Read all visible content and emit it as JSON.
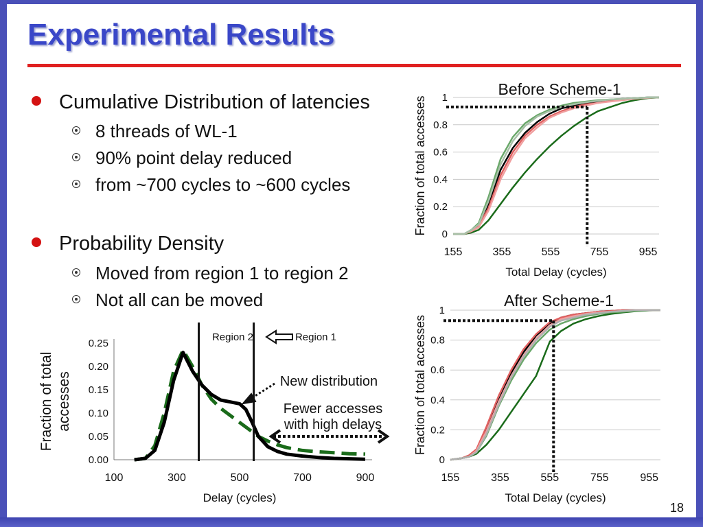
{
  "slide": {
    "title": "Experimental Results",
    "page_number": "18",
    "colors": {
      "title": "#3a47c8",
      "rule": "#e02020",
      "bullet": "#d41212",
      "frame": "#4a50b8"
    }
  },
  "bullets": [
    {
      "text": "Cumulative Distribution of latencies",
      "sub": [
        "8 threads of WL-1",
        "90% point delay reduced",
        "from ~700 cycles to ~600 cycles"
      ]
    },
    {
      "text": "Probability Density",
      "sub": [
        "Moved from region 1 to region 2",
        "Not all can be moved"
      ]
    }
  ],
  "chart_data": [
    {
      "id": "before",
      "type": "line",
      "title": "Before Scheme-1",
      "xlabel": "Total Delay (cycles)",
      "ylabel": "Fraction of total accesses",
      "xlim": [
        155,
        1000
      ],
      "ylim": [
        0,
        1
      ],
      "xticks": [
        "155",
        "355",
        "555",
        "755",
        "955"
      ],
      "yticks": [
        "0",
        "0.2",
        "0.4",
        "0.6",
        "0.8",
        "1"
      ],
      "grid": true,
      "series": [
        {
          "color": "#1a6b1a",
          "x": [
            155,
            200,
            230,
            260,
            300,
            350,
            400,
            450,
            500,
            550,
            600,
            650,
            700,
            750,
            800,
            850,
            900,
            955,
            1000
          ],
          "y": [
            0,
            0,
            0.01,
            0.03,
            0.1,
            0.22,
            0.34,
            0.45,
            0.55,
            0.64,
            0.72,
            0.79,
            0.85,
            0.9,
            0.93,
            0.96,
            0.98,
            0.995,
            1
          ]
        },
        {
          "color": "#000000",
          "x": [
            155,
            200,
            230,
            260,
            300,
            350,
            400,
            450,
            500,
            550,
            600,
            650,
            700,
            750,
            800,
            850,
            900,
            955,
            1000
          ],
          "y": [
            0,
            0,
            0.02,
            0.05,
            0.22,
            0.47,
            0.63,
            0.74,
            0.82,
            0.88,
            0.92,
            0.94,
            0.96,
            0.97,
            0.98,
            0.99,
            0.995,
            1,
            1
          ]
        },
        {
          "color": "#e06060",
          "x": [
            155,
            200,
            230,
            260,
            300,
            350,
            400,
            450,
            500,
            550,
            600,
            650,
            700,
            750,
            800,
            850,
            900,
            955,
            1000
          ],
          "y": [
            0,
            0,
            0.02,
            0.06,
            0.19,
            0.43,
            0.6,
            0.72,
            0.8,
            0.86,
            0.9,
            0.93,
            0.95,
            0.96,
            0.975,
            0.985,
            0.993,
            0.998,
            1
          ]
        },
        {
          "color": "#f0a0a0",
          "x": [
            155,
            200,
            230,
            260,
            300,
            350,
            400,
            450,
            500,
            550,
            600,
            650,
            700,
            750,
            800,
            850,
            900,
            955,
            1000
          ],
          "y": [
            0,
            0,
            0.02,
            0.05,
            0.17,
            0.4,
            0.57,
            0.7,
            0.78,
            0.85,
            0.89,
            0.92,
            0.94,
            0.96,
            0.97,
            0.98,
            0.99,
            0.997,
            1
          ]
        },
        {
          "color": "#6aa86a",
          "x": [
            155,
            200,
            230,
            260,
            300,
            350,
            400,
            450,
            500,
            550,
            600,
            650,
            700,
            750,
            800,
            850,
            900,
            955,
            1000
          ],
          "y": [
            0,
            0,
            0.03,
            0.08,
            0.27,
            0.55,
            0.71,
            0.81,
            0.87,
            0.91,
            0.94,
            0.96,
            0.97,
            0.98,
            0.985,
            0.99,
            0.995,
            1,
            1
          ]
        },
        {
          "color": "#a8c0a8",
          "x": [
            155,
            200,
            230,
            260,
            300,
            350,
            400,
            450,
            500,
            550,
            600,
            650,
            700,
            750,
            800,
            850,
            900,
            955,
            1000
          ],
          "y": [
            0,
            0,
            0.03,
            0.07,
            0.24,
            0.51,
            0.68,
            0.79,
            0.86,
            0.9,
            0.93,
            0.95,
            0.965,
            0.975,
            0.985,
            0.99,
            0.995,
            1,
            1
          ]
        }
      ],
      "marker": {
        "x": 705,
        "y": 0.93
      }
    },
    {
      "id": "after",
      "type": "line",
      "title": "After Scheme-1",
      "xlabel": "Total Delay (cycles)",
      "ylabel": "Fraction of total accesses",
      "xlim": [
        155,
        1000
      ],
      "ylim": [
        0,
        1
      ],
      "xticks": [
        "155",
        "355",
        "555",
        "755",
        "955"
      ],
      "yticks": [
        "0",
        "0.2",
        "0.4",
        "0.6",
        "0.8",
        "1"
      ],
      "grid": true,
      "series": [
        {
          "color": "#1a6b1a",
          "x": [
            155,
            200,
            230,
            260,
            300,
            350,
            400,
            450,
            500,
            555,
            600,
            650,
            700,
            750,
            800,
            850,
            900,
            955,
            1000
          ],
          "y": [
            0,
            0.01,
            0.02,
            0.04,
            0.1,
            0.2,
            0.32,
            0.44,
            0.56,
            0.79,
            0.86,
            0.91,
            0.94,
            0.96,
            0.975,
            0.985,
            0.993,
            0.998,
            1
          ]
        },
        {
          "color": "#000000",
          "x": [
            155,
            200,
            230,
            260,
            300,
            350,
            400,
            450,
            500,
            555,
            600,
            650,
            700,
            750,
            800,
            850,
            900,
            955,
            1000
          ],
          "y": [
            0,
            0.01,
            0.02,
            0.06,
            0.2,
            0.4,
            0.58,
            0.72,
            0.83,
            0.91,
            0.95,
            0.97,
            0.98,
            0.99,
            0.995,
            1,
            1,
            1,
            1
          ]
        },
        {
          "color": "#e06060",
          "x": [
            155,
            200,
            230,
            260,
            300,
            350,
            400,
            450,
            500,
            555,
            600,
            650,
            700,
            750,
            800,
            850,
            900,
            955,
            1000
          ],
          "y": [
            0,
            0.01,
            0.03,
            0.07,
            0.22,
            0.43,
            0.6,
            0.74,
            0.84,
            0.92,
            0.95,
            0.97,
            0.98,
            0.99,
            0.995,
            1,
            1,
            1,
            1
          ]
        },
        {
          "color": "#f0a0a0",
          "x": [
            155,
            200,
            230,
            260,
            300,
            350,
            400,
            450,
            500,
            555,
            600,
            650,
            700,
            750,
            800,
            850,
            900,
            955,
            1000
          ],
          "y": [
            0,
            0.01,
            0.02,
            0.06,
            0.19,
            0.39,
            0.56,
            0.7,
            0.81,
            0.9,
            0.94,
            0.96,
            0.975,
            0.985,
            0.99,
            0.995,
            1,
            1,
            1
          ]
        },
        {
          "color": "#6aa86a",
          "x": [
            155,
            200,
            230,
            260,
            300,
            350,
            400,
            450,
            500,
            555,
            600,
            650,
            700,
            750,
            800,
            850,
            900,
            955,
            1000
          ],
          "y": [
            0,
            0.01,
            0.02,
            0.05,
            0.16,
            0.36,
            0.53,
            0.67,
            0.78,
            0.87,
            0.91,
            0.94,
            0.96,
            0.975,
            0.985,
            0.99,
            0.995,
            1,
            1
          ]
        },
        {
          "color": "#b0b0b0",
          "x": [
            155,
            200,
            230,
            260,
            300,
            350,
            400,
            450,
            500,
            555,
            600,
            650,
            700,
            750,
            800,
            850,
            900,
            955,
            1000
          ],
          "y": [
            0,
            0.01,
            0.02,
            0.05,
            0.17,
            0.37,
            0.55,
            0.69,
            0.8,
            0.89,
            0.93,
            0.95,
            0.97,
            0.98,
            0.99,
            0.995,
            1,
            1,
            1
          ]
        }
      ],
      "marker": {
        "x": 570,
        "y": 0.93
      }
    },
    {
      "id": "density",
      "type": "line",
      "xlabel": "Delay (cycles)",
      "ylabel": "Fraction of total accesses",
      "xlim": [
        100,
        900
      ],
      "ylim": [
        0,
        0.25
      ],
      "xticks": [
        "100",
        "300",
        "500",
        "700",
        "900"
      ],
      "yticks": [
        "0.00",
        "0.05",
        "0.10",
        "0.15",
        "0.20",
        "0.25"
      ],
      "grid": false,
      "series": [
        {
          "color": "#1a6b1a",
          "dashed": true,
          "x": [
            165,
            200,
            230,
            260,
            290,
            320,
            350,
            380,
            410,
            440,
            470,
            500,
            530,
            560,
            590,
            620,
            650,
            700,
            750,
            800,
            850,
            900
          ],
          "y": [
            0,
            0.003,
            0.03,
            0.1,
            0.19,
            0.235,
            0.2,
            0.16,
            0.13,
            0.11,
            0.095,
            0.08,
            0.065,
            0.05,
            0.04,
            0.032,
            0.026,
            0.02,
            0.017,
            0.015,
            0.013,
            0.012
          ]
        },
        {
          "color": "#000000",
          "dashed": false,
          "x": [
            165,
            200,
            230,
            260,
            290,
            320,
            350,
            380,
            410,
            440,
            470,
            500,
            520,
            540,
            560,
            590,
            620,
            650,
            700,
            750,
            800,
            850,
            900
          ],
          "y": [
            0,
            0.003,
            0.02,
            0.08,
            0.17,
            0.23,
            0.19,
            0.16,
            0.14,
            0.128,
            0.124,
            0.12,
            0.108,
            0.08,
            0.05,
            0.028,
            0.018,
            0.012,
            0.008,
            0.005,
            0.003,
            0.002,
            0.001
          ]
        }
      ],
      "regions": [
        {
          "label": "Region 2",
          "x": 370
        },
        {
          "label": "Region 1",
          "x": 545
        }
      ],
      "annotations": [
        "New distribution",
        "Fewer accesses",
        "with high delays"
      ]
    }
  ]
}
